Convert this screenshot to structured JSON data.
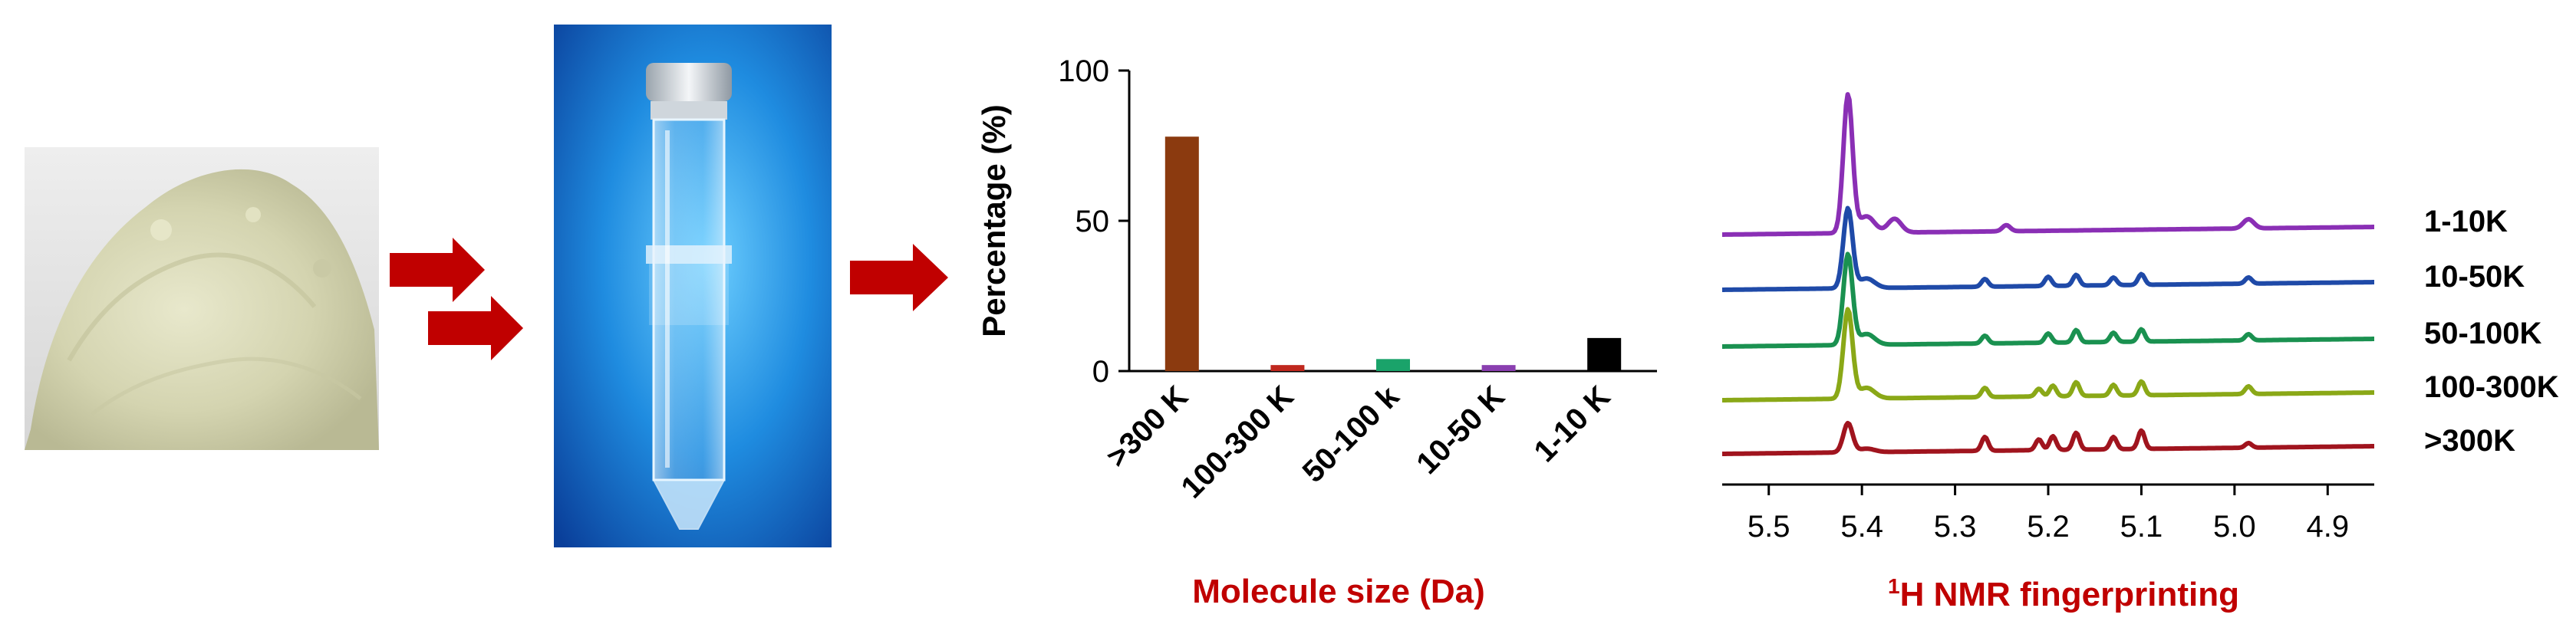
{
  "arrows": {
    "color": "#c00000"
  },
  "powder": {
    "color": "#d7d7b6"
  },
  "tube": {
    "background": "#1f7fd8"
  },
  "chart_data": [
    {
      "type": "bar",
      "categories": [
        ">300 K",
        "100-300 K",
        "50-100 k",
        "10-50 K",
        "1-10 K"
      ],
      "values": [
        78,
        2,
        4,
        2,
        11
      ],
      "colors": [
        "#8b3a0f",
        "#c0281e",
        "#1aa36a",
        "#8a3fb0",
        "#000000"
      ],
      "ylabel": "Percentage (%)",
      "xlabel": "Molecule size (Da)",
      "xlabel_color": "#c00000",
      "ylim": [
        0,
        100
      ],
      "yticks": [
        0,
        50,
        100
      ],
      "grid": false
    },
    {
      "type": "line",
      "title": "",
      "xlabel_sup": "1",
      "xlabel": "H NMR fingerprinting",
      "xlabel_color": "#c00000",
      "xlim": [
        5.55,
        4.85
      ],
      "xticks": [
        "5.5",
        "5.4",
        "5.3",
        "5.2",
        "5.1",
        "5.0",
        "4.9"
      ],
      "x_reversed": true,
      "series": [
        {
          "name": "1-10K",
          "color": "#8a2fb5"
        },
        {
          "name": "10-50K",
          "color": "#1f4aa8"
        },
        {
          "name": "50-100K",
          "color": "#1a9150"
        },
        {
          "name": "100-300K",
          "color": "#8aa817"
        },
        {
          "name": ">300K",
          "color": "#a0141e"
        }
      ]
    }
  ]
}
